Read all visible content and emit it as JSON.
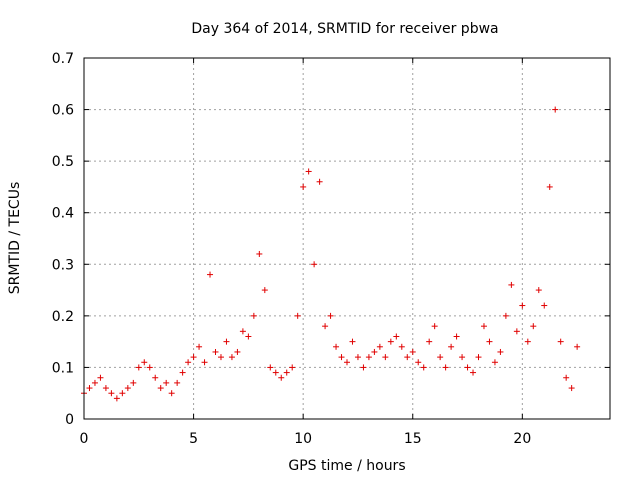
{
  "chart_data": {
    "type": "scatter",
    "title": "Day 364 of 2014, SRMTID for receiver pbwa",
    "xlabel": "GPS time / hours",
    "ylabel": "SRMTID / TECUs",
    "xlim": [
      0,
      24
    ],
    "ylim": [
      0,
      0.7
    ],
    "xticks": [
      0,
      5,
      10,
      15,
      20
    ],
    "yticks": [
      0,
      0.1,
      0.2,
      0.3,
      0.4,
      0.5,
      0.6,
      0.7
    ],
    "xtick_labels": [
      "0",
      "5",
      "10",
      "15",
      "20"
    ],
    "ytick_labels": [
      "0",
      "0.1",
      "0.2",
      "0.3",
      "0.4",
      "0.5",
      "0.6",
      "0.7"
    ],
    "grid": true,
    "marker": "+",
    "color": "#e00000",
    "series": [
      {
        "name": "SRMTID",
        "x": [
          0.0,
          0.25,
          0.5,
          0.75,
          1.0,
          1.25,
          1.5,
          1.75,
          2.0,
          2.25,
          2.5,
          2.75,
          3.0,
          3.25,
          3.5,
          3.75,
          4.0,
          4.25,
          4.5,
          4.75,
          5.0,
          5.25,
          5.5,
          5.75,
          6.0,
          6.25,
          6.5,
          6.75,
          7.0,
          7.25,
          7.5,
          7.75,
          8.0,
          8.25,
          8.5,
          8.75,
          9.0,
          9.25,
          9.5,
          9.75,
          10.0,
          10.25,
          10.5,
          10.75,
          11.0,
          11.25,
          11.5,
          11.75,
          12.0,
          12.25,
          12.5,
          12.75,
          13.0,
          13.25,
          13.5,
          13.75,
          14.0,
          14.25,
          14.5,
          14.75,
          15.0,
          15.25,
          15.5,
          15.75,
          16.0,
          16.25,
          16.5,
          16.75,
          17.0,
          17.25,
          17.5,
          17.75,
          18.0,
          18.25,
          18.5,
          18.75,
          19.0,
          19.25,
          19.5,
          19.75,
          20.0,
          20.25,
          20.5,
          20.75,
          21.0,
          21.25,
          21.5,
          21.75,
          22.0,
          22.25,
          22.5
        ],
        "y": [
          0.05,
          0.06,
          0.07,
          0.08,
          0.06,
          0.05,
          0.04,
          0.05,
          0.06,
          0.07,
          0.1,
          0.11,
          0.1,
          0.08,
          0.06,
          0.07,
          0.05,
          0.07,
          0.09,
          0.11,
          0.12,
          0.14,
          0.11,
          0.28,
          0.13,
          0.12,
          0.15,
          0.12,
          0.13,
          0.17,
          0.16,
          0.2,
          0.32,
          0.25,
          0.1,
          0.09,
          0.08,
          0.09,
          0.1,
          0.2,
          0.45,
          0.48,
          0.3,
          0.46,
          0.18,
          0.2,
          0.14,
          0.12,
          0.11,
          0.15,
          0.12,
          0.1,
          0.12,
          0.13,
          0.14,
          0.12,
          0.15,
          0.16,
          0.14,
          0.12,
          0.13,
          0.11,
          0.1,
          0.15,
          0.18,
          0.12,
          0.1,
          0.14,
          0.16,
          0.12,
          0.1,
          0.09,
          0.12,
          0.18,
          0.15,
          0.11,
          0.13,
          0.2,
          0.26,
          0.17,
          0.22,
          0.15,
          0.18,
          0.25,
          0.22,
          0.45,
          0.6,
          0.15,
          0.08,
          0.06,
          0.14
        ]
      }
    ]
  }
}
